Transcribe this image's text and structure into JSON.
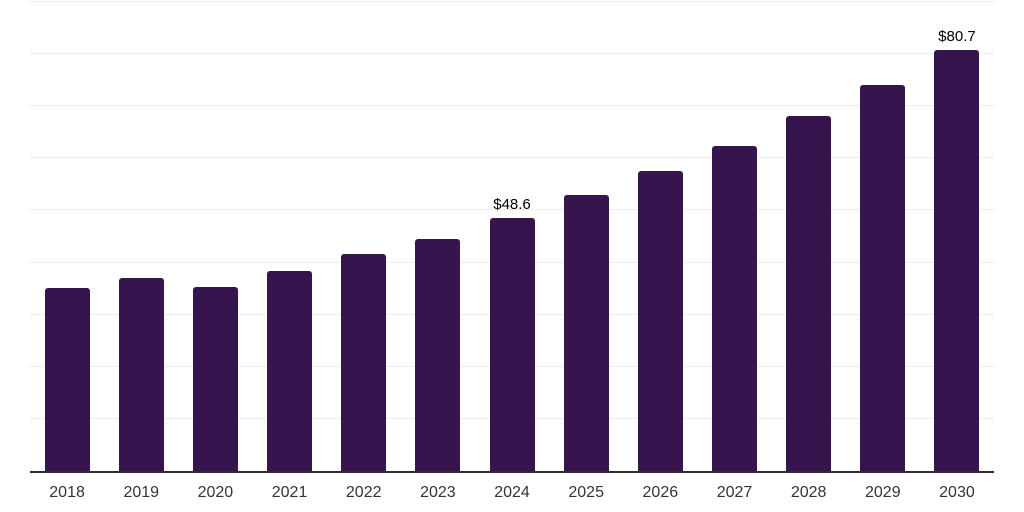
{
  "chart_data": {
    "type": "bar",
    "title": "",
    "xlabel": "",
    "ylabel": "",
    "categories": [
      "2018",
      "2019",
      "2020",
      "2021",
      "2022",
      "2023",
      "2024",
      "2025",
      "2026",
      "2027",
      "2028",
      "2029",
      "2030"
    ],
    "values": [
      35.2,
      37.1,
      35.4,
      38.4,
      41.6,
      44.6,
      48.6,
      52.9,
      57.5,
      62.3,
      68.1,
      74.1,
      80.7
    ],
    "data_labels": [
      "",
      "",
      "",
      "",
      "",
      "",
      "$48.6",
      "",
      "",
      "",
      "",
      "",
      "$80.7"
    ],
    "ylim": [
      0,
      90
    ],
    "ytick_interval": 10,
    "grid": true,
    "legend_position": "none",
    "colors": {
      "bar": "#36154E",
      "gridline": "#ececec",
      "axis": "#2d2d2d",
      "data_label": "#000000",
      "tick_label": "#333333",
      "background": "#ffffff"
    }
  }
}
